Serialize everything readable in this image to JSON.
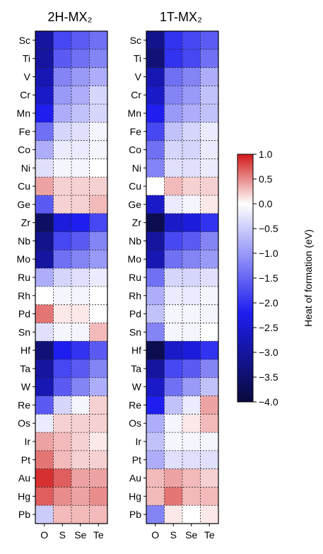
{
  "chart_data": {
    "type": "heatmap",
    "panels": [
      {
        "title": "2H-MX₂",
        "rows": [
          "Sc",
          "Ti",
          "V",
          "Cr",
          "Mn",
          "Fe",
          "Co",
          "Ni",
          "Cu",
          "Ge",
          "Zr",
          "Nb",
          "Mo",
          "Ru",
          "Rh",
          "Pd",
          "Sn",
          "Hf",
          "Ta",
          "W",
          "Re",
          "Os",
          "Ir",
          "Pt",
          "Au",
          "Hg",
          "Pb"
        ],
        "cols": [
          "O",
          "S",
          "Se",
          "Te"
        ],
        "values": [
          [
            -3.0,
            -1.8,
            -1.6,
            -1.4
          ],
          [
            -3.0,
            -1.6,
            -1.4,
            -1.2
          ],
          [
            -2.8,
            -1.2,
            -1.0,
            -0.8
          ],
          [
            -2.6,
            -1.0,
            -0.8,
            -0.4
          ],
          [
            -2.2,
            -0.8,
            -0.6,
            -0.4
          ],
          [
            -1.4,
            -0.4,
            -0.3,
            -0.1
          ],
          [
            -0.8,
            -0.2,
            -0.2,
            -0.1
          ],
          [
            -0.3,
            -0.1,
            -0.1,
            0.0
          ],
          [
            0.4,
            0.2,
            0.2,
            0.2
          ],
          [
            -1.6,
            0.2,
            0.2,
            0.3
          ],
          [
            -3.6,
            -2.4,
            -2.2,
            -1.8
          ],
          [
            -3.2,
            -1.8,
            -1.6,
            -1.2
          ],
          [
            -3.0,
            -1.4,
            -1.2,
            -1.0
          ],
          [
            -0.8,
            -0.4,
            -0.3,
            -0.2
          ],
          [
            0.0,
            -0.1,
            -0.1,
            0.0
          ],
          [
            0.6,
            0.1,
            0.1,
            0.0
          ],
          [
            -0.3,
            -0.1,
            -0.1,
            0.3
          ],
          [
            -3.4,
            -2.2,
            -2.0,
            -1.6
          ],
          [
            -3.0,
            -1.8,
            -1.6,
            -1.2
          ],
          [
            -2.8,
            -1.6,
            -1.2,
            -0.8
          ],
          [
            -1.6,
            -0.4,
            -0.1,
            0.2
          ],
          [
            -0.2,
            0.2,
            0.2,
            0.2
          ],
          [
            0.4,
            0.3,
            0.2,
            0.1
          ],
          [
            0.6,
            0.3,
            0.2,
            0.2
          ],
          [
            0.9,
            0.7,
            0.4,
            0.4
          ],
          [
            0.7,
            0.5,
            0.4,
            0.5
          ],
          [
            -0.5,
            0.3,
            0.3,
            0.3
          ]
        ]
      },
      {
        "title": "1T-MX₂",
        "rows": [
          "Sc",
          "Ti",
          "V",
          "Cr",
          "Mn",
          "Fe",
          "Co",
          "Ni",
          "Cu",
          "Ge",
          "Zr",
          "Nb",
          "Mo",
          "Ru",
          "Rh",
          "Pd",
          "Sn",
          "Hf",
          "Ta",
          "W",
          "Re",
          "Os",
          "Ir",
          "Pt",
          "Au",
          "Hg",
          "Pb"
        ],
        "cols": [
          "O",
          "S",
          "Se",
          "Te"
        ],
        "values": [
          [
            -3.2,
            -2.0,
            -1.8,
            -1.6
          ],
          [
            -3.4,
            -2.0,
            -1.8,
            -1.4
          ],
          [
            -2.8,
            -1.4,
            -1.2,
            -0.8
          ],
          [
            -2.6,
            -1.2,
            -1.0,
            -0.6
          ],
          [
            -2.2,
            -1.0,
            -0.8,
            -0.6
          ],
          [
            -1.8,
            -0.6,
            -0.4,
            -0.2
          ],
          [
            -1.4,
            -0.4,
            -0.4,
            -0.2
          ],
          [
            -1.2,
            -0.3,
            -0.3,
            -0.2
          ],
          [
            0.0,
            0.3,
            0.2,
            0.2
          ],
          [
            -2.6,
            -0.2,
            -0.1,
            0.1
          ],
          [
            -3.8,
            -2.6,
            -2.4,
            -2.0
          ],
          [
            -3.0,
            -1.8,
            -1.6,
            -1.2
          ],
          [
            -2.8,
            -1.4,
            -1.2,
            -1.0
          ],
          [
            -1.4,
            -0.4,
            -0.4,
            -0.3
          ],
          [
            -0.8,
            -0.2,
            -0.2,
            -0.1
          ],
          [
            -0.6,
            -0.1,
            -0.1,
            -0.1
          ],
          [
            -1.2,
            -0.1,
            -0.1,
            0.0
          ],
          [
            -3.8,
            -2.6,
            -2.4,
            -2.0
          ],
          [
            -3.0,
            -1.8,
            -1.6,
            -1.2
          ],
          [
            -2.6,
            -1.4,
            -1.0,
            -0.6
          ],
          [
            -2.2,
            -0.6,
            -0.2,
            0.4
          ],
          [
            -0.8,
            -0.1,
            0.1,
            0.3
          ],
          [
            -0.6,
            -0.1,
            -0.1,
            -0.1
          ],
          [
            -0.8,
            -0.3,
            -0.3,
            -0.3
          ],
          [
            0.3,
            0.4,
            0.3,
            0.2
          ],
          [
            0.3,
            0.6,
            0.3,
            0.3
          ],
          [
            -1.2,
            0.1,
            0.0,
            0.1
          ]
        ]
      }
    ],
    "colorbar": {
      "label": "Heat of formation (eV)",
      "range": [
        -4.0,
        1.0
      ],
      "ticks": [
        1.0,
        0.5,
        0.0,
        -0.5,
        -1.0,
        -1.5,
        -2.0,
        -2.5,
        -3.0,
        -3.5,
        -4.0
      ],
      "tick_labels": [
        "1.0",
        "0.5",
        "0.0",
        "−0.5",
        "−1.0",
        "−1.5",
        "−2.0",
        "−2.5",
        "−3.0",
        "−3.5",
        "−4.0"
      ],
      "colors": {
        "neg_end": "#0a0a3c",
        "neg_mid": "#1e1ef0",
        "zero": "#ffffff",
        "pos_end": "#d21919"
      }
    }
  }
}
